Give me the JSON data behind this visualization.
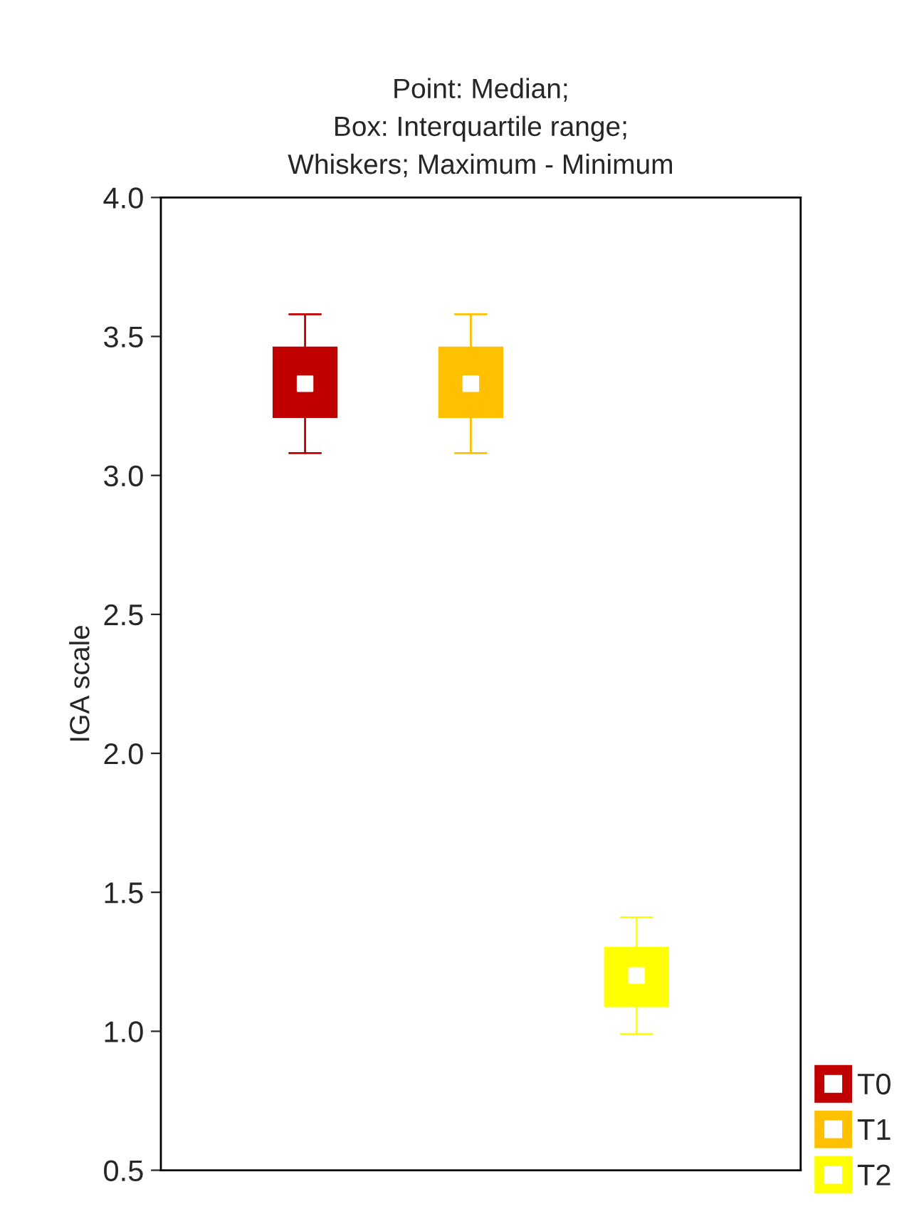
{
  "chart_data": {
    "type": "box",
    "title": "Point: Median;\nBox: Interquartile range;\nWhiskers; Maximum - Minimum",
    "ylabel": "IGA scale",
    "categories": [
      null,
      null,
      null
    ],
    "series": [
      {
        "name": "T0",
        "color": "#c00000",
        "boxes": [
          {
            "low": 3.08,
            "q1": 3.21,
            "median": 3.33,
            "q3": 3.46,
            "high": 3.58
          },
          null,
          null
        ]
      },
      {
        "name": "T1",
        "color": "#ffc000",
        "boxes": [
          null,
          {
            "low": 3.08,
            "q1": 3.21,
            "median": 3.33,
            "q3": 3.46,
            "high": 3.58
          },
          null
        ]
      },
      {
        "name": "T2",
        "color": "#ffff00",
        "boxes": [
          null,
          null,
          {
            "low": 0.99,
            "q1": 1.09,
            "median": 1.2,
            "q3": 1.3,
            "high": 1.41
          }
        ]
      }
    ],
    "ylim": [
      0.5,
      4.0
    ],
    "yticks": [
      0.5,
      {
        "value": 1,
        "label": "1.0"
      },
      1.5,
      {
        "value": 2,
        "label": "2.0"
      },
      2.5,
      {
        "value": 3,
        "label": "3.0"
      },
      3.5,
      {
        "value": 4,
        "label": "4.0"
      }
    ],
    "marker": "square",
    "grid": false,
    "legend": "bottom right"
  }
}
